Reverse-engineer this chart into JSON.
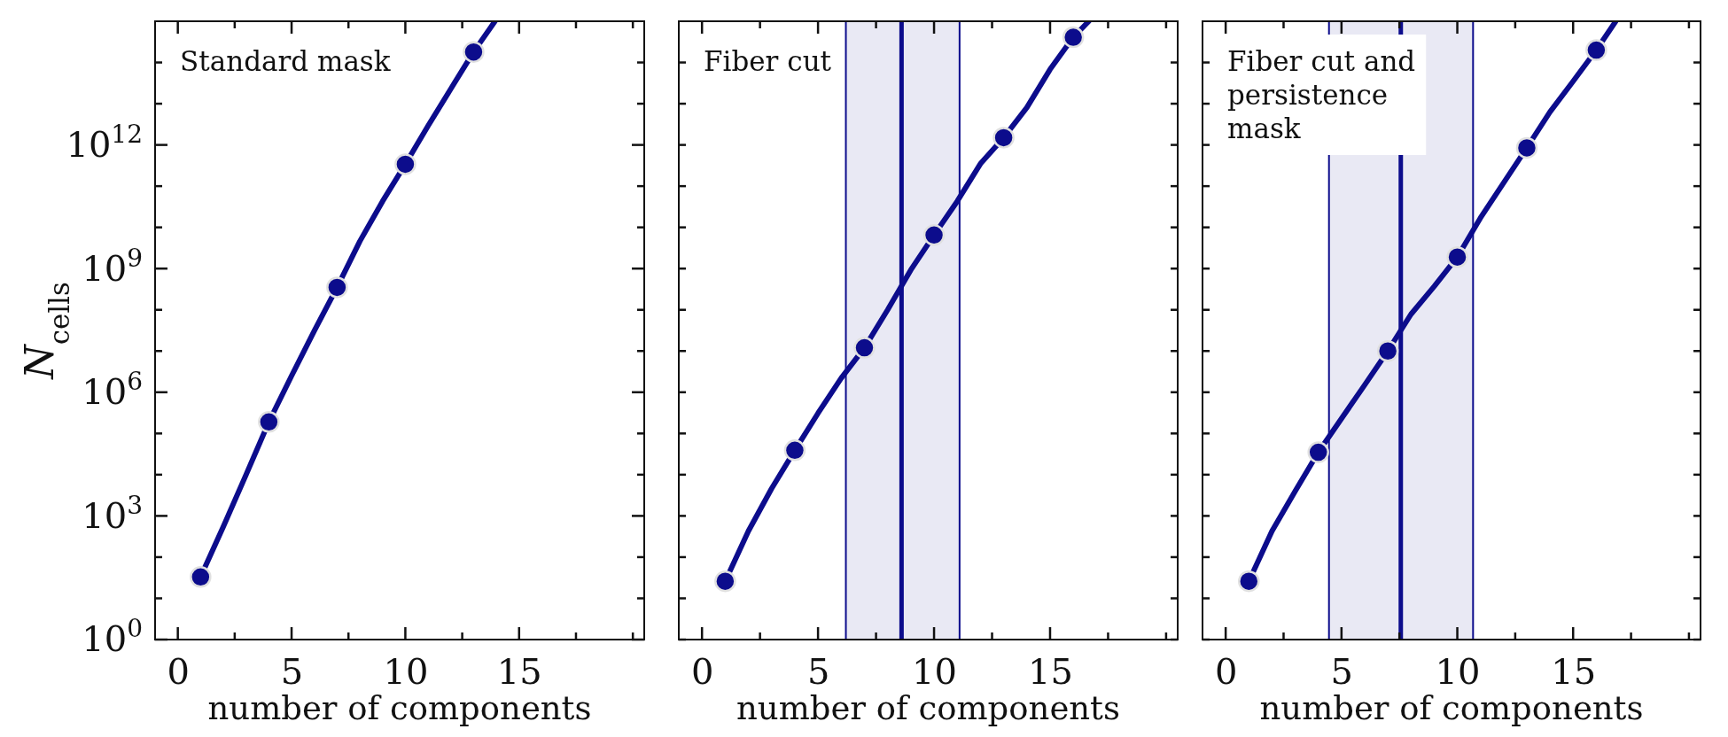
{
  "chart_data": [
    {
      "type": "line",
      "log": "y",
      "xlabel": "number of components",
      "ylabel": "N$_{cells}$",
      "xlim": [
        -1,
        20.5
      ],
      "ylim": [
        1,
        1000000000000000.0
      ],
      "xticks": [
        0,
        {
          "value": 2.5,
          "label": null
        },
        5,
        {
          "value": 7.5,
          "label": null
        },
        10,
        {
          "value": 12.5,
          "label": null
        },
        15,
        {
          "value": 17.5,
          "label": null
        },
        {
          "value": 20,
          "label": null
        }
      ],
      "yticks": [
        {
          "value": 1,
          "label": "10$^{0}$"
        },
        {
          "value": 10.0,
          "label": null
        },
        {
          "value": 100.0,
          "label": null
        },
        {
          "value": 1000.0,
          "label": "10$^{3}$"
        },
        {
          "value": 10000.0,
          "label": null
        },
        {
          "value": 100000.0,
          "label": null
        },
        {
          "value": 1000000.0,
          "label": "10$^{6}$"
        },
        {
          "value": 10000000.0,
          "label": null
        },
        {
          "value": 100000000.0,
          "label": null
        },
        {
          "value": 1000000000.0,
          "label": "10$^{9}$"
        },
        {
          "value": 10000000000.0,
          "label": null
        },
        {
          "value": 100000000000.0,
          "label": null
        },
        {
          "value": 1000000000000.0,
          "label": "10$^{12}$"
        },
        {
          "value": 10000000000000.0,
          "label": null
        },
        {
          "value": 100000000000000.0,
          "label": null
        }
      ],
      "annotations": [
        "Standard mask"
      ],
      "series": [
        {
          "type": "line",
          "color": "#0c0c8c",
          "marker": "none",
          "x": [
            1,
            2,
            3,
            4,
            5,
            6,
            7,
            8,
            9,
            10,
            11,
            12,
            13,
            13.94
          ],
          "values": [
            33,
            550.0,
            10000.0,
            190000.0,
            2500000.0,
            31000000.0,
            350000000.0,
            4600000000.0,
            43000000000.0,
            340000000000.0,
            2900000000000.0,
            23000000000000.0,
            180000000000000.0,
            1000000000000000.0
          ]
        },
        {
          "type": "scatter",
          "color": "#0c0c8c",
          "marker": "circle",
          "x": [
            1,
            4,
            7,
            10,
            13
          ],
          "values": [
            33,
            190000.0,
            350000000.0,
            340000000000.0,
            180000000000000.0
          ]
        }
      ]
    },
    {
      "type": "line",
      "log": "y",
      "xlabel": "number of components",
      "tick_labels": "x",
      "xlim": [
        -1,
        20.5
      ],
      "ylim": [
        1,
        1000000000000000.0
      ],
      "xticks": [
        0,
        {
          "value": 2.5,
          "label": null
        },
        5,
        {
          "value": 7.5,
          "label": null
        },
        10,
        {
          "value": 12.5,
          "label": null
        },
        15,
        {
          "value": 17.5,
          "label": null
        },
        {
          "value": 20,
          "label": null
        }
      ],
      "yticks": [
        {
          "value": 1,
          "label": null
        },
        {
          "value": 10.0,
          "label": null
        },
        {
          "value": 100.0,
          "label": null
        },
        {
          "value": 1000.0,
          "label": null
        },
        {
          "value": 10000.0,
          "label": null
        },
        {
          "value": 100000.0,
          "label": null
        },
        {
          "value": 1000000.0,
          "label": null
        },
        {
          "value": 10000000.0,
          "label": null
        },
        {
          "value": 100000000.0,
          "label": null
        },
        {
          "value": 1000000000.0,
          "label": null
        },
        {
          "value": 10000000000.0,
          "label": null
        },
        {
          "value": 100000000000.0,
          "label": null
        },
        {
          "value": 1000000000000.0,
          "label": null
        },
        {
          "value": 10000000000000.0,
          "label": null
        },
        {
          "value": 100000000000000.0,
          "label": null
        }
      ],
      "annotations": [
        "Fiber cut"
      ],
      "bands": [
        {
          "axis": "x",
          "from": 6.2,
          "to": 11.1,
          "color": "#e9e9f4"
        }
      ],
      "ref_lines": [
        {
          "axis": "x",
          "value": 8.6,
          "color": "#0c0c8c"
        }
      ],
      "series": [
        {
          "type": "line",
          "color": "#0c0c8c",
          "marker": "none",
          "x": [
            1,
            2,
            3,
            4,
            5,
            6,
            7,
            8,
            9,
            10,
            11,
            12,
            13,
            14,
            15,
            16,
            16.67
          ],
          "values": [
            26,
            430.0,
            4600.0,
            39000.0,
            310000.0,
            2200000.0,
            12000000.0,
            100000000.0,
            930000000.0,
            6500000000.0,
            43000000000.0,
            350000000000.0,
            1500000000000.0,
            8100000000000.0,
            68000000000000.0,
            410000000000000.0,
            1000000000000000.0
          ]
        },
        {
          "type": "scatter",
          "color": "#0c0c8c",
          "marker": "circle",
          "x": [
            1,
            4,
            7,
            10,
            13,
            16
          ],
          "values": [
            26,
            39000.0,
            12000000.0,
            6500000000.0,
            1500000000000.0,
            410000000000000.0
          ]
        }
      ]
    },
    {
      "type": "line",
      "log": "y",
      "xlabel": "number of components",
      "tick_labels": "x",
      "xlim": [
        -1,
        20.5
      ],
      "ylim": [
        1,
        1000000000000000.0
      ],
      "xticks": [
        0,
        {
          "value": 2.5,
          "label": null
        },
        5,
        {
          "value": 7.5,
          "label": null
        },
        10,
        {
          "value": 12.5,
          "label": null
        },
        15,
        {
          "value": 17.5,
          "label": null
        },
        {
          "value": 20,
          "label": null
        }
      ],
      "yticks": [
        {
          "value": 1,
          "label": null
        },
        {
          "value": 10.0,
          "label": null
        },
        {
          "value": 100.0,
          "label": null
        },
        {
          "value": 1000.0,
          "label": null
        },
        {
          "value": 10000.0,
          "label": null
        },
        {
          "value": 100000.0,
          "label": null
        },
        {
          "value": 1000000.0,
          "label": null
        },
        {
          "value": 10000000.0,
          "label": null
        },
        {
          "value": 100000000.0,
          "label": null
        },
        {
          "value": 1000000000.0,
          "label": null
        },
        {
          "value": 10000000000.0,
          "label": null
        },
        {
          "value": 100000000000.0,
          "label": null
        },
        {
          "value": 1000000000000.0,
          "label": null
        },
        {
          "value": 10000000000000.0,
          "label": null
        },
        {
          "value": 100000000000000.0,
          "label": null
        }
      ],
      "annotations": [
        "Fiber cut and persistence mask"
      ],
      "bands": [
        {
          "axis": "x",
          "from": 4.46,
          "to": 10.68,
          "color": "#e9e9f4"
        }
      ],
      "ref_lines": [
        {
          "axis": "x",
          "value": 7.56,
          "color": "#0c0c8c"
        }
      ],
      "series": [
        {
          "type": "line",
          "color": "#0c0c8c",
          "marker": "none",
          "x": [
            1,
            2,
            3,
            4,
            5,
            6,
            7,
            8,
            9,
            10,
            11,
            12,
            13,
            14,
            15,
            16,
            16.84
          ],
          "values": [
            26,
            430.0,
            4000.0,
            35000.0,
            230000.0,
            1500000.0,
            10000000.0,
            78000000.0,
            370000000.0,
            1900000000.0,
            17000000000.0,
            120000000000.0,
            850000000000.0,
            6300000000000.0,
            35000000000000.0,
            200000000000000.0,
            1000000000000000.0
          ]
        },
        {
          "type": "scatter",
          "color": "#0c0c8c",
          "marker": "circle",
          "x": [
            1,
            4,
            7,
            10,
            13,
            16
          ],
          "values": [
            26,
            35000.0,
            10000000.0,
            1900000000.0,
            850000000000.0,
            200000000000000.0
          ]
        }
      ]
    }
  ]
}
